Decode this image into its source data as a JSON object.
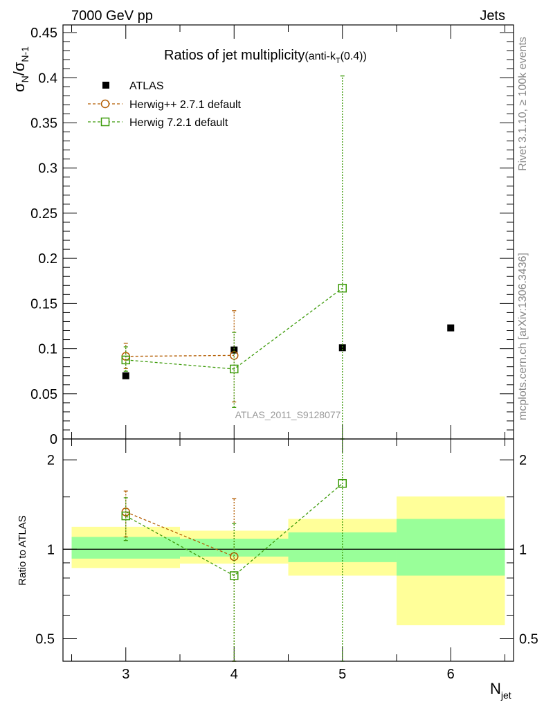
{
  "header": {
    "left": "7000 GeV pp",
    "right": "Jets"
  },
  "side_labels": {
    "rivet": "Rivet 3.1.10, ≥ 100k events",
    "mcplots": "mcplots.cern.ch [arXiv:1306.3436]"
  },
  "colors": {
    "herwig_pp": "#b35c00",
    "herwig7": "#3d9b0a",
    "band_inner": "#99ff99",
    "band_outer": "#ffff99",
    "data": "#000000"
  },
  "chart_data": [
    {
      "type": "scatter",
      "panel": "main",
      "title": "Ratios of jet multiplicity",
      "title_suffix_pre": "(anti-k",
      "title_suffix_sub": "T",
      "title_suffix_post": "(0.4))",
      "ylabel": {
        "sigma": "σ",
        "sub1": "N",
        "slash": "/σ",
        "sub2": "N-1"
      },
      "xlim": [
        2.42,
        6.58
      ],
      "ylim": [
        0,
        0.4585
      ],
      "yticks": [
        0,
        0.05,
        0.1,
        0.15,
        0.2,
        0.25,
        0.3,
        0.35,
        0.4,
        0.45
      ],
      "ytick_labels": [
        "0",
        "0.05",
        "0.1",
        "0.15",
        "0.2",
        "0.25",
        "0.3",
        "0.35",
        "0.4",
        "0.45"
      ],
      "watermark": "ATLAS_2011_S9128077",
      "legend_position": "top-left",
      "series": [
        {
          "name": "ATLAS",
          "kind": "data",
          "x": [
            3,
            4,
            5,
            6
          ],
          "y": [
            0.07,
            0.0985,
            0.101,
            0.123
          ]
        },
        {
          "name": "Herwig++ 2.7.1 default",
          "kind": "mc-circle",
          "x": [
            3,
            4
          ],
          "y": [
            0.0915,
            0.0925
          ],
          "yerr_lo": [
            0.078,
            0.041
          ],
          "yerr_hi": [
            0.106,
            0.142
          ]
        },
        {
          "name": "Herwig 7.2.1 default",
          "kind": "mc-square",
          "x": [
            3,
            4,
            5
          ],
          "y": [
            0.0875,
            0.0775,
            0.167
          ],
          "yerr_lo": [
            0.075,
            0.035,
            0.0
          ],
          "yerr_hi": [
            0.102,
            0.118,
            0.402
          ]
        }
      ]
    },
    {
      "type": "scatter",
      "panel": "ratio",
      "ylabel": "Ratio to ATLAS",
      "xlabel": {
        "main": "N",
        "sub": "jet"
      },
      "scale": "log",
      "xlim": [
        2.42,
        6.58
      ],
      "ylim": [
        0.42,
        2.35
      ],
      "xticks": [
        3,
        4,
        5,
        6
      ],
      "xtick_labels": [
        "3",
        "4",
        "5",
        "6"
      ],
      "yticks": [
        0.5,
        1,
        2
      ],
      "ytick_labels": [
        "0.5",
        "1",
        "2"
      ],
      "bands": [
        {
          "x0": 2.5,
          "x1": 3.5,
          "inner": [
            0.93,
            1.1
          ],
          "outer": [
            0.865,
            1.19
          ]
        },
        {
          "x0": 3.5,
          "x1": 4.5,
          "inner": [
            0.945,
            1.085
          ],
          "outer": [
            0.895,
            1.155
          ]
        },
        {
          "x0": 4.5,
          "x1": 5.5,
          "inner": [
            0.905,
            1.14
          ],
          "outer": [
            0.815,
            1.265
          ]
        },
        {
          "x0": 5.5,
          "x1": 6.5,
          "inner": [
            0.815,
            1.265
          ],
          "outer": [
            0.555,
            1.505
          ]
        }
      ],
      "series": [
        {
          "name": "Herwig++ 2.7.1 default",
          "kind": "mc-circle",
          "x": [
            3,
            4
          ],
          "y": [
            1.335,
            0.945
          ],
          "yerr_lo": [
            1.1,
            0.42
          ],
          "yerr_hi": [
            1.57,
            1.48
          ]
        },
        {
          "name": "Herwig 7.2.1 default",
          "kind": "mc-square",
          "x": [
            3,
            4,
            5
          ],
          "y": [
            1.295,
            0.815,
            1.665
          ],
          "yerr_lo": [
            1.07,
            0.36,
            0.3
          ],
          "yerr_hi": [
            1.49,
            1.22,
            3.0
          ]
        }
      ]
    }
  ]
}
